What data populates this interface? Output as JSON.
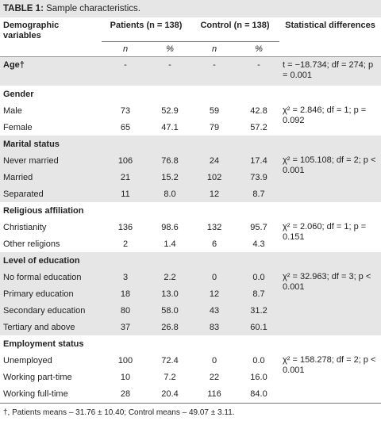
{
  "header": {
    "label": "TABLE 1:",
    "title": "Sample characteristics."
  },
  "table": {
    "columns": [
      "Demographic variables",
      "Patients (n = 138)",
      "Control (n = 138)",
      "Statistical differences"
    ],
    "subcolumns": [
      "n",
      "%",
      "n",
      "%"
    ],
    "sections": [
      {
        "heading": "Age†",
        "values": [
          "-",
          "-",
          "-",
          "-"
        ],
        "stat": "t = −18.734; df = 274; p = 0.001",
        "rows": []
      },
      {
        "heading": "Gender",
        "stat": "χ² = 2.846; df = 1; p = 0.092",
        "rows": [
          {
            "label": "Male",
            "values": [
              "73",
              "52.9",
              "59",
              "42.8"
            ]
          },
          {
            "label": "Female",
            "values": [
              "65",
              "47.1",
              "79",
              "57.2"
            ]
          }
        ]
      },
      {
        "heading": "Marital status",
        "stat": "χ² = 105.108; df = 2; p < 0.001",
        "rows": [
          {
            "label": "Never married",
            "values": [
              "106",
              "76.8",
              "24",
              "17.4"
            ]
          },
          {
            "label": "Married",
            "values": [
              "21",
              "15.2",
              "102",
              "73.9"
            ]
          },
          {
            "label": "Separated",
            "values": [
              "11",
              "8.0",
              "12",
              "8.7"
            ]
          }
        ]
      },
      {
        "heading": "Religious affiliation",
        "stat": "χ² = 2.060; df = 1; p = 0.151",
        "rows": [
          {
            "label": "Christianity",
            "values": [
              "136",
              "98.6",
              "132",
              "95.7"
            ]
          },
          {
            "label": "Other religions",
            "values": [
              "2",
              "1.4",
              "6",
              "4.3"
            ]
          }
        ]
      },
      {
        "heading": "Level of education",
        "stat": "χ² = 32.963; df = 3; p < 0.001",
        "rows": [
          {
            "label": "No formal education",
            "values": [
              "3",
              "2.2",
              "0",
              "0.0"
            ]
          },
          {
            "label": "Primary education",
            "values": [
              "18",
              "13.0",
              "12",
              "8.7"
            ]
          },
          {
            "label": "Secondary education",
            "values": [
              "80",
              "58.0",
              "43",
              "31.2"
            ]
          },
          {
            "label": "Tertiary and above",
            "values": [
              "37",
              "26.8",
              "83",
              "60.1"
            ]
          }
        ]
      },
      {
        "heading": "Employment status",
        "stat": "χ² = 158.278; df = 2; p < 0.001",
        "rows": [
          {
            "label": "Unemployed",
            "values": [
              "100",
              "72.4",
              "0",
              "0.0"
            ]
          },
          {
            "label": "Working part-time",
            "values": [
              "10",
              "7.2",
              "22",
              "16.0"
            ]
          },
          {
            "label": "Working full-time",
            "values": [
              "28",
              "20.4",
              "116",
              "84.0"
            ]
          }
        ]
      }
    ]
  },
  "footnote": "†, Patients means – 31.76 ± 10.40; Control means – 49.07 ± 3.11."
}
